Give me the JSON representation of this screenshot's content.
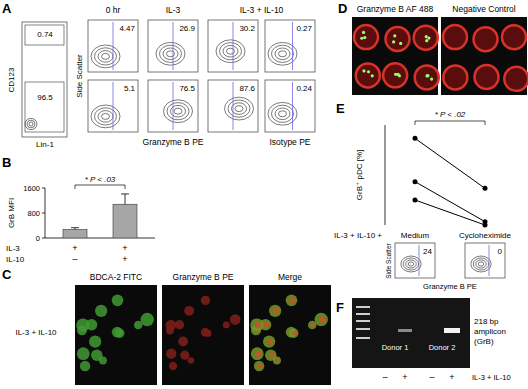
{
  "chart_data": [
    {
      "panel": "B",
      "type": "bar",
      "categories": [
        null,
        null
      ],
      "values": [
        270,
        1080
      ],
      "errors": [
        60,
        330
      ],
      "color": "#a6a6a6",
      "y_label": "GrB MFI",
      "ylim": [
        0,
        1600
      ],
      "yticks": [
        0,
        800,
        1600
      ],
      "annotation": "* P < .03",
      "conditions": [
        {
          "name": "IL-3",
          "signs": [
            "+",
            "+"
          ]
        },
        {
          "name": "IL-10",
          "signs": [
            "–",
            "+"
          ]
        }
      ]
    },
    {
      "panel": "E",
      "type": "line",
      "categories": [
        "Medium",
        "Cycloheximide"
      ],
      "series": [
        {
          "values": [
            52,
            22
          ]
        },
        {
          "values": [
            26,
            2
          ]
        },
        {
          "values": [
            15,
            0
          ]
        }
      ],
      "color": "#000000",
      "marker": "circle",
      "y_label": "GrB⁺ pDC [%]",
      "ylim": [
        0,
        60
      ],
      "yticks": [],
      "tick_labels": false,
      "annotation": "* P < .02",
      "x_prefix": "IL-3 + IL-10 +",
      "insets": {
        "values": [
          24,
          0
        ],
        "y_label": "Side Scatter",
        "x_label": "Granzyme B PE"
      }
    }
  ],
  "panels": {
    "A": {
      "label": "A",
      "gate": {
        "y_label": "CD123",
        "x_label": "Lin-1",
        "values": [
          0.74,
          96.5
        ]
      },
      "columns": [
        "0 hr",
        "IL-3",
        "IL-3 + IL-10"
      ],
      "y_label": "Side Scatter",
      "x_labels": [
        "Granzyme B PE",
        "Isotype PE"
      ],
      "rows": [
        [
          4.47,
          26.9,
          30.2,
          0.27
        ],
        [
          5.1,
          76.5,
          87.6,
          0.24
        ]
      ]
    },
    "C": {
      "label": "C",
      "row_label": "IL-3 + IL-10",
      "columns": [
        "BDCA-2 FITC",
        "Granzyme B PE",
        "Merge"
      ]
    },
    "D": {
      "label": "D",
      "columns": [
        "Granzyme B AF 488",
        "Negative Control"
      ]
    },
    "F": {
      "label": "F",
      "band_label": [
        "218 bp",
        "amplicon",
        "(GrB)"
      ],
      "donors": [
        "Donor 1",
        "Donor 2"
      ],
      "treatment": "IL-3 + IL-10",
      "signs": [
        "–",
        "+",
        "–",
        "+"
      ]
    }
  }
}
